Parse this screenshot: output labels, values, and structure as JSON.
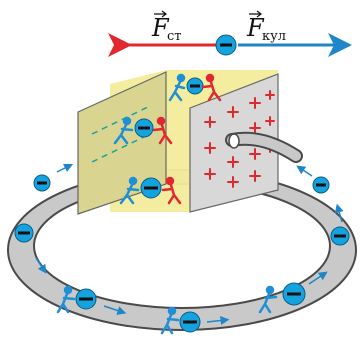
{
  "labels": {
    "left_force_symbol": "F",
    "left_force_subscript": "ст",
    "right_force_symbol": "F",
    "right_force_subscript": "кул"
  },
  "colors": {
    "left_arrow": "#e0282e",
    "right_arrow": "#1f86c9",
    "electron": "#15a3e0",
    "person_blue": "#1f8fd6",
    "person_red": "#e0282e",
    "wire_fill": "#c9c9c9",
    "wire_edge": "#4a4a4a",
    "box_face": "#f3ec9a",
    "plate_left": "#d9d490",
    "plate_right": "#d8d8d8",
    "plus": "#e0282e"
  },
  "icons": {
    "charge_sign": "minus",
    "plate_charge": "plus"
  }
}
